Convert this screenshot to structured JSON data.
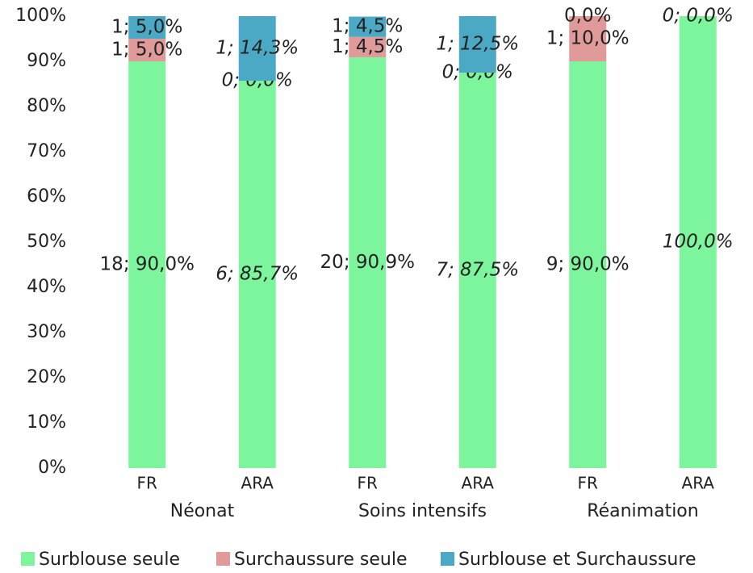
{
  "chart_data": {
    "type": "stacked_bar",
    "categories": [
      "FR",
      "ARA",
      "FR",
      "ARA",
      "FR",
      "ARA"
    ],
    "groups": [
      "Néonat",
      "Soins intensifs",
      "Réanimation"
    ],
    "series": [
      {
        "name": "Surblouse seule",
        "color": "#7cf59d",
        "values": [
          90,
          85.7,
          90.9,
          87.5,
          90,
          100
        ],
        "value_labels": [
          "18; 90,0%",
          "6; 85,7%",
          "20; 90,9%",
          "7; 87,5%",
          "9; 90,0%",
          "100,0%"
        ]
      },
      {
        "name": "Surchaussure seule",
        "color": "#e09a9a",
        "values": [
          5,
          0,
          4.5,
          0,
          10,
          0
        ],
        "value_labels": [
          "1; 5,0%",
          "0; 0,0%",
          "1; 4,5%",
          "0; 0,0%",
          "1; 10,0%",
          null
        ]
      },
      {
        "name": "Surblouse et Surchaussure",
        "color": "#4ba9c6",
        "values": [
          5,
          14.3,
          4.5,
          12.5,
          0,
          0
        ],
        "value_labels": [
          "1; 5,0%",
          "1; 14,3%",
          "1; 4,5%",
          "1; 12,5%",
          "0,0%",
          "0; 0,0%"
        ]
      }
    ],
    "ylim": [
      0,
      100
    ],
    "yticks": [
      {
        "value": 0,
        "label": "0%"
      },
      {
        "value": 10,
        "label": "10%"
      },
      {
        "value": 20,
        "label": "20%"
      },
      {
        "value": 30,
        "label": "30%"
      },
      {
        "value": 40,
        "label": "40%"
      },
      {
        "value": 50,
        "label": "50%"
      },
      {
        "value": 60,
        "label": "60%"
      },
      {
        "value": 70,
        "label": "70%"
      },
      {
        "value": 80,
        "label": "80%"
      },
      {
        "value": 90,
        "label": "90%"
      },
      {
        "value": 100,
        "label": "100%"
      }
    ],
    "legend": "bottom"
  }
}
